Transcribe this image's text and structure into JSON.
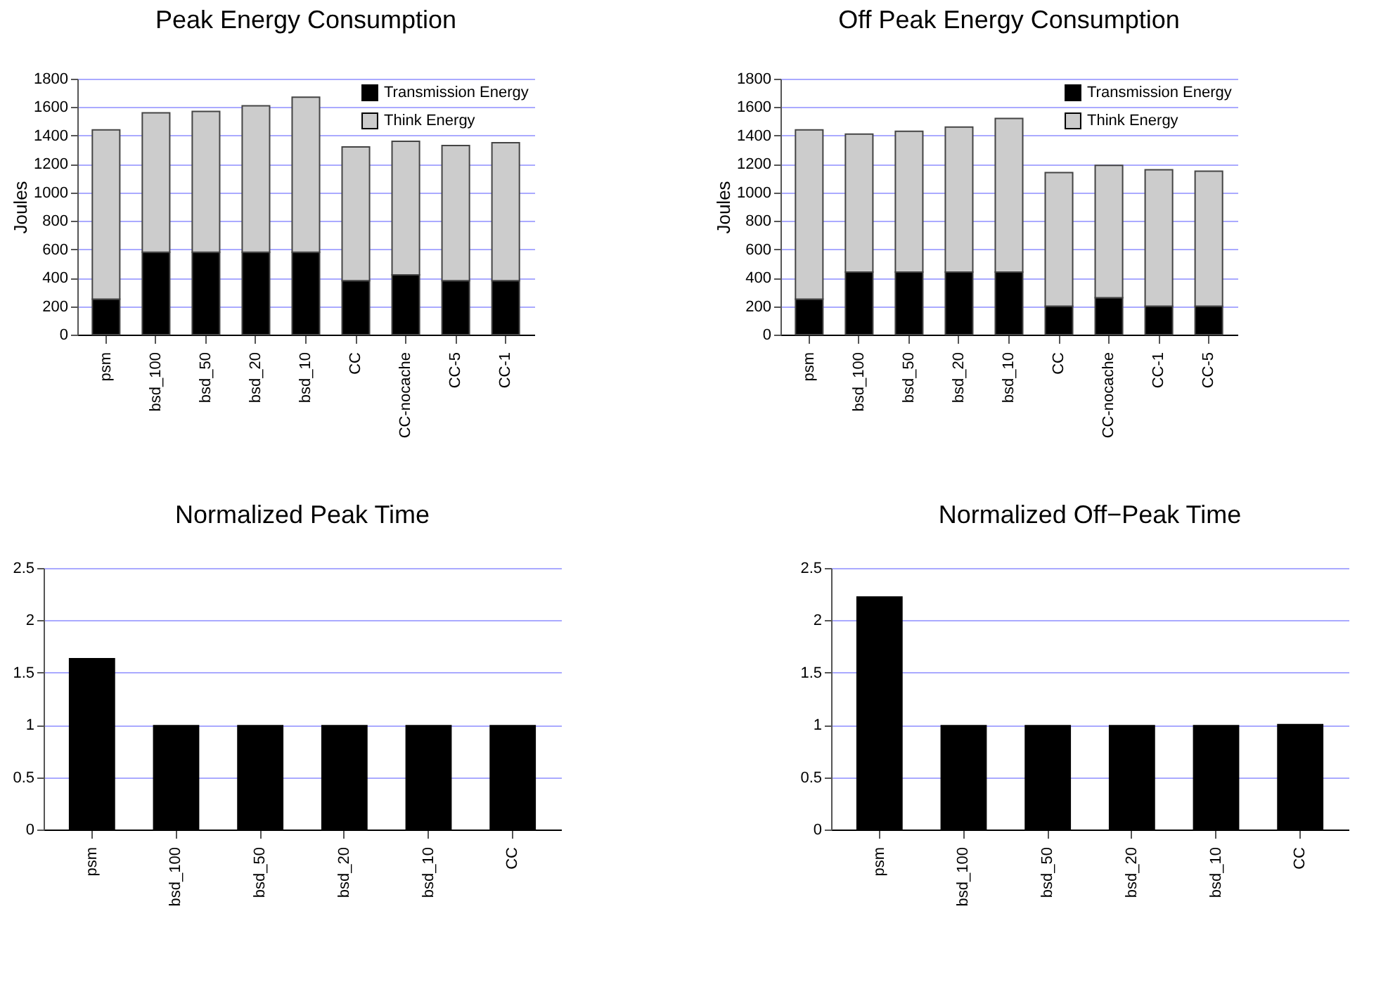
{
  "chart_data": [
    {
      "type": "bar",
      "title": "Peak Energy Consumption",
      "ylabel": "Joules",
      "categories": [
        "psm",
        "bsd_100",
        "bsd_50",
        "bsd_20",
        "bsd_10",
        "CC",
        "CC-nocache",
        "CC-5",
        "CC-1"
      ],
      "stacked": true,
      "series": [
        {
          "name": "Transmission Energy",
          "color": "#000000",
          "values": [
            250,
            580,
            580,
            580,
            580,
            380,
            420,
            380,
            380
          ]
        },
        {
          "name": "Think Energy",
          "color": "#cccccc",
          "values": [
            1190,
            980,
            990,
            1030,
            1090,
            940,
            940,
            950,
            970
          ]
        }
      ],
      "ylim": [
        0,
        1800
      ],
      "yticks": [
        0,
        200,
        400,
        600,
        800,
        1000,
        1200,
        1400,
        1600,
        1800
      ],
      "grid": "y",
      "legend": "top right"
    },
    {
      "type": "bar",
      "title": "Off Peak Energy Consumption",
      "ylabel": "Joules",
      "categories": [
        "psm",
        "bsd_100",
        "bsd_50",
        "bsd_20",
        "bsd_10",
        "CC",
        "CC-nocache",
        "CC-1",
        "CC-5"
      ],
      "stacked": true,
      "series": [
        {
          "name": "Transmission Energy",
          "color": "#000000",
          "values": [
            250,
            440,
            440,
            440,
            440,
            200,
            260,
            200,
            200
          ]
        },
        {
          "name": "Think Energy",
          "color": "#cccccc",
          "values": [
            1190,
            970,
            990,
            1020,
            1080,
            940,
            930,
            960,
            950
          ]
        }
      ],
      "ylim": [
        0,
        1800
      ],
      "yticks": [
        0,
        200,
        400,
        600,
        800,
        1000,
        1200,
        1400,
        1600,
        1800
      ],
      "grid": "y",
      "legend": "top right"
    },
    {
      "type": "bar",
      "title": "Normalized Peak Time",
      "categories": [
        "psm",
        "bsd_100",
        "bsd_50",
        "bsd_20",
        "bsd_10",
        "CC"
      ],
      "values": [
        1.64,
        1,
        1,
        1,
        1,
        1
      ],
      "color": "#000000",
      "ylim": [
        0,
        2.5
      ],
      "yticks": [
        0,
        0.5,
        1,
        1.5,
        2,
        2.5
      ],
      "grid": "y"
    },
    {
      "type": "bar",
      "title": "Normalized Off−Peak Time",
      "categories": [
        "psm",
        "bsd_100",
        "bsd_50",
        "bsd_20",
        "bsd_10",
        "CC"
      ],
      "values": [
        2.23,
        1,
        1,
        1,
        1,
        1.01
      ],
      "color": "#000000",
      "ylim": [
        0,
        2.5
      ],
      "yticks": [
        0,
        0.5,
        1,
        1.5,
        2,
        2.5
      ],
      "grid": "y"
    }
  ]
}
